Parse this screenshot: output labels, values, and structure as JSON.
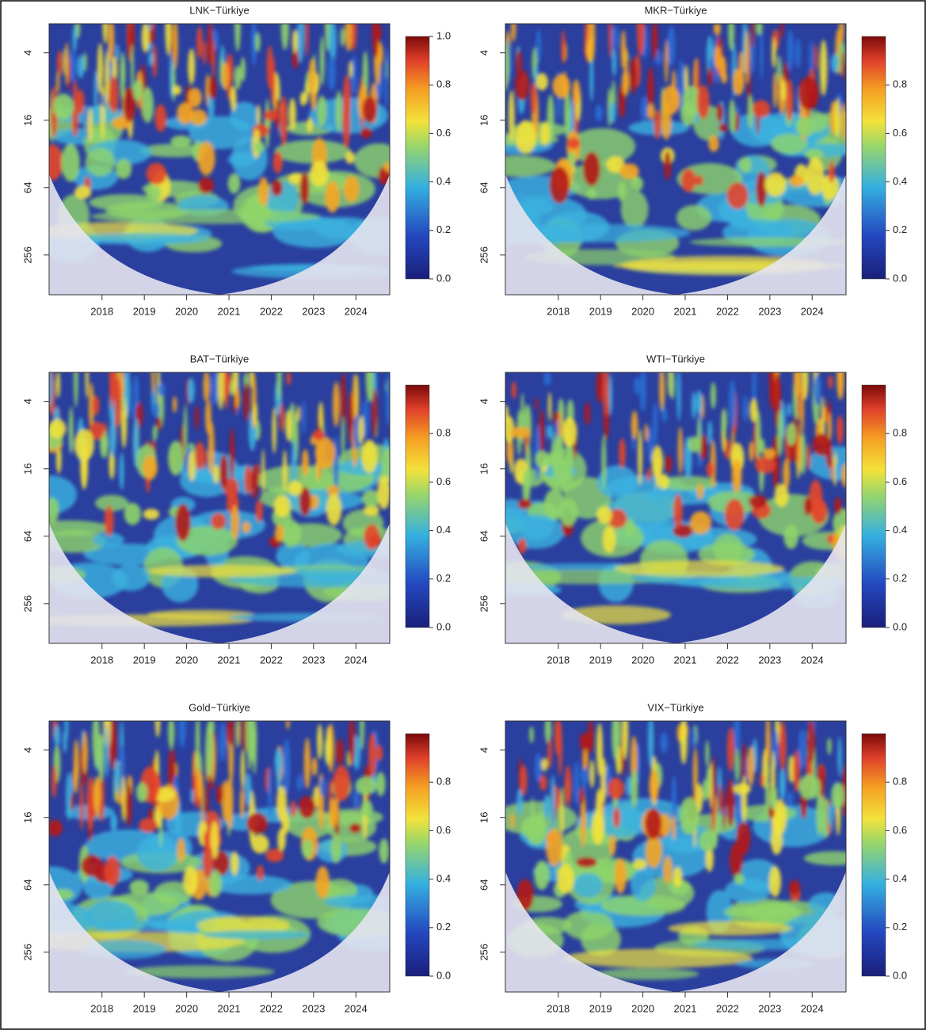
{
  "chart_data": [
    {
      "type": "wavelet-coherence",
      "title": "LNK−Türkiye",
      "xlim": [
        2016.75,
        2024.8
      ],
      "xticks": [
        2018,
        2019,
        2020,
        2021,
        2022,
        2023,
        2024
      ],
      "ylim": [
        2.2,
        580
      ],
      "yticks": [
        4,
        16,
        64,
        256
      ],
      "log_y": true,
      "colorbar_lim": [
        0,
        1
      ],
      "colorbar_ticks": [
        {
          "value": 0,
          "label": "0.0"
        },
        0.2,
        0.4,
        0.6,
        0.8,
        {
          "value": 1,
          "label": "1.0"
        }
      ]
    },
    {
      "type": "wavelet-coherence",
      "title": "MKR−Türkiye",
      "xlim": [
        2016.75,
        2024.8
      ],
      "xticks": [
        2018,
        2019,
        2020,
        2021,
        2022,
        2023,
        2024
      ],
      "ylim": [
        2.2,
        580
      ],
      "yticks": [
        4,
        16,
        64,
        256
      ],
      "log_y": true,
      "colorbar_lim": [
        0,
        1
      ],
      "colorbar_ticks": [
        {
          "value": 0,
          "label": "0.0"
        },
        0.2,
        0.4,
        0.6,
        0.8
      ]
    },
    {
      "type": "wavelet-coherence",
      "title": "BAT−Türkiye",
      "xlim": [
        2016.75,
        2024.8
      ],
      "xticks": [
        2018,
        2019,
        2020,
        2021,
        2022,
        2023,
        2024
      ],
      "ylim": [
        2.2,
        580
      ],
      "yticks": [
        4,
        16,
        64,
        256
      ],
      "log_y": true,
      "colorbar_lim": [
        0,
        1
      ],
      "colorbar_ticks": [
        {
          "value": 0,
          "label": "0.0"
        },
        0.2,
        0.4,
        0.6,
        0.8
      ]
    },
    {
      "type": "wavelet-coherence",
      "title": "WTI−Türkiye",
      "xlim": [
        2016.75,
        2024.8
      ],
      "xticks": [
        2018,
        2019,
        2020,
        2021,
        2022,
        2023,
        2024
      ],
      "ylim": [
        2.2,
        580
      ],
      "yticks": [
        4,
        16,
        64,
        256
      ],
      "log_y": true,
      "colorbar_lim": [
        0,
        1
      ],
      "colorbar_ticks": [
        {
          "value": 0,
          "label": "0.0"
        },
        0.2,
        0.4,
        0.6,
        0.8
      ]
    },
    {
      "type": "wavelet-coherence",
      "title": "Gold−Türkiye",
      "xlim": [
        2016.75,
        2024.8
      ],
      "xticks": [
        2018,
        2019,
        2020,
        2021,
        2022,
        2023,
        2024
      ],
      "ylim": [
        2.2,
        580
      ],
      "yticks": [
        4,
        16,
        64,
        256
      ],
      "log_y": true,
      "colorbar_lim": [
        0,
        1
      ],
      "colorbar_ticks": [
        {
          "value": 0,
          "label": "0.0"
        },
        0.2,
        0.4,
        0.6,
        0.8
      ]
    },
    {
      "type": "wavelet-coherence",
      "title": "VIX−Türkiye",
      "xlim": [
        2016.75,
        2024.8
      ],
      "xticks": [
        2018,
        2019,
        2020,
        2021,
        2022,
        2023,
        2024
      ],
      "ylim": [
        2.2,
        580
      ],
      "yticks": [
        4,
        16,
        64,
        256
      ],
      "log_y": true,
      "colorbar_lim": [
        0,
        1
      ],
      "colorbar_ticks": [
        {
          "value": 0,
          "label": "0.0"
        },
        0.2,
        0.4,
        0.6,
        0.8
      ]
    }
  ]
}
